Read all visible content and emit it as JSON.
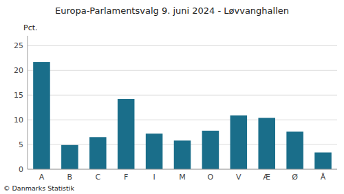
{
  "chart_data": {
    "type": "bar",
    "title": "Europa-Parlamentsvalg 9. juni 2024 - Løvvanghallen",
    "ylabel": "Pct.",
    "annotations": [
      "© Danmarks Statistik"
    ],
    "categories": [
      "A",
      "B",
      "C",
      "F",
      "I",
      "M",
      "O",
      "V",
      "Æ",
      "Ø",
      "Å"
    ],
    "values": [
      21.7,
      4.9,
      6.5,
      14.2,
      7.2,
      5.8,
      7.8,
      10.9,
      10.4,
      7.6,
      3.4
    ],
    "color": "#1a6e8a",
    "ylim": [
      0,
      27
    ],
    "yticks": [
      0,
      5,
      10,
      15,
      20,
      25
    ],
    "grid": true
  }
}
